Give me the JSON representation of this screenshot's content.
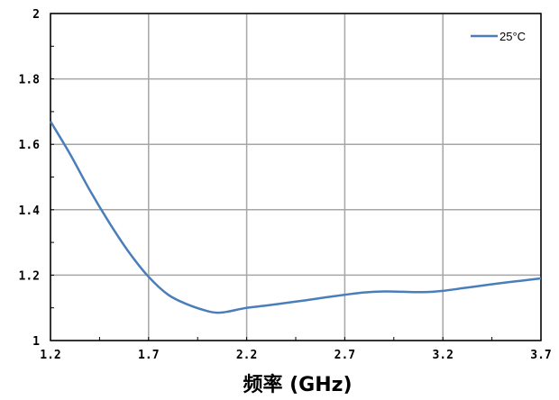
{
  "chart_data": {
    "type": "line",
    "title": "",
    "xlabel": "频率 (GHz)",
    "ylabel": "",
    "xlim": [
      1.2,
      3.7
    ],
    "ylim": [
      1,
      2
    ],
    "x_ticks": [
      "1.2",
      "1.7",
      "2.2",
      "2.7",
      "3.2",
      "3.7"
    ],
    "y_ticks": [
      "1",
      "1.2",
      "1.4",
      "1.6",
      "1.8",
      "2"
    ],
    "grid": true,
    "legend_position": "top-right",
    "series": [
      {
        "name": "25°C",
        "color": "#4a7ebb",
        "x": [
          1.2,
          1.3,
          1.4,
          1.5,
          1.6,
          1.7,
          1.8,
          1.9,
          2.0,
          2.05,
          2.1,
          2.2,
          2.3,
          2.4,
          2.5,
          2.6,
          2.7,
          2.8,
          2.9,
          3.0,
          3.1,
          3.2,
          3.3,
          3.4,
          3.5,
          3.6,
          3.7
        ],
        "y": [
          1.67,
          1.57,
          1.46,
          1.36,
          1.27,
          1.195,
          1.14,
          1.11,
          1.09,
          1.085,
          1.088,
          1.1,
          1.107,
          1.115,
          1.123,
          1.132,
          1.14,
          1.147,
          1.15,
          1.149,
          1.148,
          1.152,
          1.16,
          1.168,
          1.176,
          1.183,
          1.19
        ]
      }
    ]
  }
}
